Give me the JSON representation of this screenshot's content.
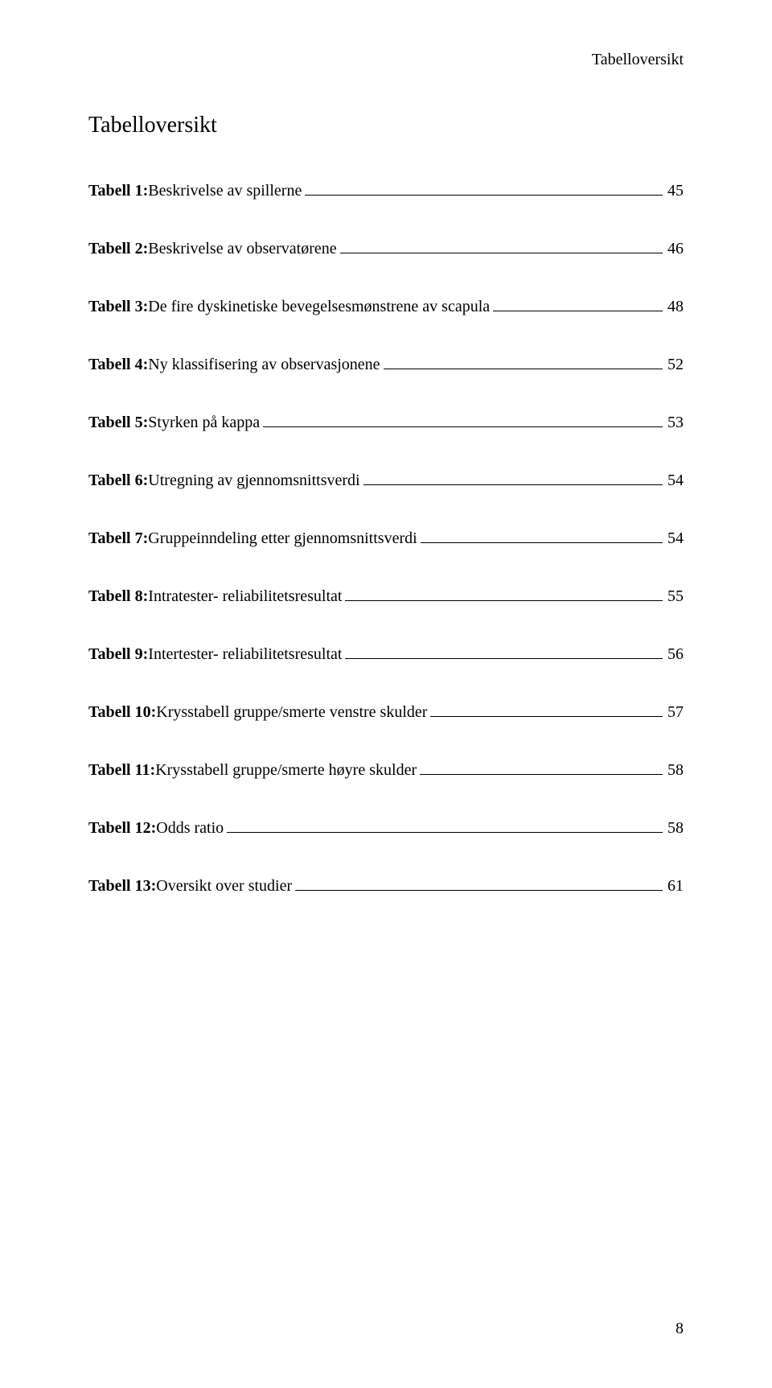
{
  "running_head": "Tabelloversikt",
  "title": "Tabelloversikt",
  "entries": [
    {
      "label": "Tabell 1:",
      "text": " Beskrivelse av spillerne",
      "page": "45"
    },
    {
      "label": "Tabell 2:",
      "text": " Beskrivelse av observatørene",
      "page": "46"
    },
    {
      "label": "Tabell 3:",
      "text": " De fire dyskinetiske bevegelsesmønstrene av scapula",
      "page": "48"
    },
    {
      "label": "Tabell 4:",
      "text": " Ny klassifisering av observasjonene",
      "page": "52"
    },
    {
      "label": "Tabell 5:",
      "text": " Styrken på kappa",
      "page": "53"
    },
    {
      "label": "Tabell 6:",
      "text": " Utregning av gjennomsnittsverdi",
      "page": "54"
    },
    {
      "label": "Tabell 7:",
      "text": " Gruppeinndeling etter gjennomsnittsverdi",
      "page": "54"
    },
    {
      "label": "Tabell 8:",
      "text": " Intratester- reliabilitetsresultat",
      "page": "55"
    },
    {
      "label": "Tabell 9:",
      "text": " Intertester- reliabilitetsresultat",
      "page": "56"
    },
    {
      "label": "Tabell 10:",
      "text": " Krysstabell gruppe/smerte venstre skulder",
      "page": "57"
    },
    {
      "label": "Tabell 11:",
      "text": " Krysstabell gruppe/smerte høyre skulder",
      "page": "58"
    },
    {
      "label": "Tabell 12:",
      "text": " Odds ratio",
      "page": "58"
    },
    {
      "label": "Tabell 13:",
      "text": " Oversikt over studier",
      "page": "61"
    }
  ],
  "page_number": "8"
}
